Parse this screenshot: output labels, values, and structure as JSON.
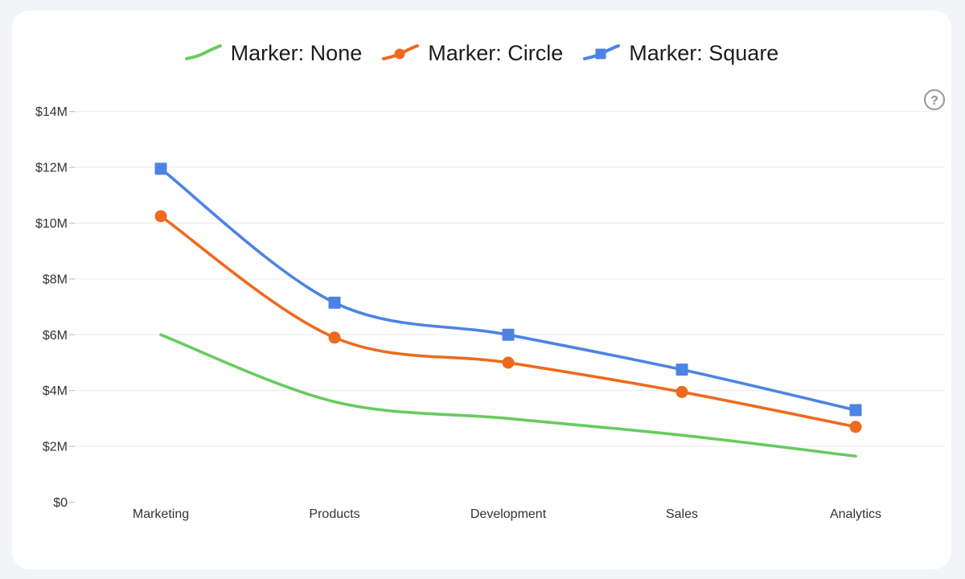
{
  "page": {
    "background_color": "#f2f4f8",
    "card_color": "#ffffff"
  },
  "help": {
    "symbol": "?"
  },
  "colors": {
    "grid": "#f0f0f3",
    "tick": "#cbcbcd",
    "axis_text": "#333333",
    "legend_text": "#1d1d1f",
    "help_icon": "#9e9e9e"
  },
  "chart_data": {
    "type": "line",
    "value_unit": "USD millions",
    "categories": [
      "Marketing",
      "Products",
      "Development",
      "Sales",
      "Analytics"
    ],
    "series": [
      {
        "name": "Marker: None",
        "marker": "none",
        "color": "#68cb5f",
        "values": [
          6.0,
          3.6,
          3.0,
          2.4,
          1.65
        ]
      },
      {
        "name": "Marker: Circle",
        "marker": "circle",
        "color": "#ee6a1d",
        "values": [
          10.25,
          5.9,
          5.0,
          3.95,
          2.7
        ]
      },
      {
        "name": "Marker: Square",
        "marker": "square",
        "color": "#4d83e4",
        "values": [
          11.95,
          7.15,
          6.0,
          4.75,
          3.3
        ]
      }
    ],
    "xlabel": "",
    "ylabel": "",
    "ylim": [
      0,
      14
    ],
    "y_ticks": [
      {
        "value": 0,
        "label": "$0"
      },
      {
        "value": 2,
        "label": "$2M"
      },
      {
        "value": 4,
        "label": "$4M"
      },
      {
        "value": 6,
        "label": "$6M"
      },
      {
        "value": 8,
        "label": "$8M"
      },
      {
        "value": 10,
        "label": "$10M"
      },
      {
        "value": 12,
        "label": "$12M"
      },
      {
        "value": 14,
        "label": "$14M"
      }
    ],
    "grid": "horizontal",
    "legend_position": "top"
  }
}
